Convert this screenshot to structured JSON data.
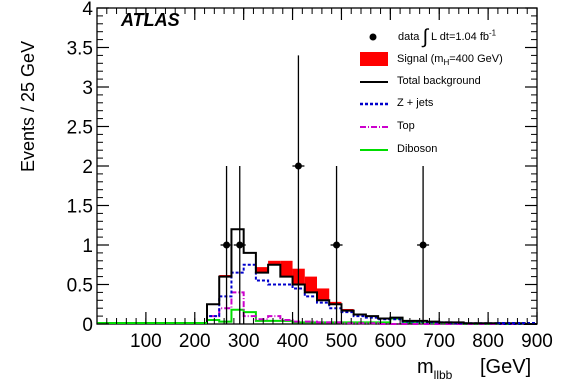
{
  "experiment": "ATLAS",
  "legend": {
    "data": "data ∫ L dt=1.04 fb⁻¹",
    "signal": "Signal (m_H=400 GeV)",
    "total": "Total background",
    "zjets": "Z + jets",
    "top": "Top",
    "diboson": "Diboson"
  },
  "colors": {
    "signal": "#ff0000",
    "total": "#000000",
    "zjets": "#0000cc",
    "top": "#cc00cc",
    "diboson": "#00dd00",
    "data": "#000000"
  },
  "chart_data": {
    "type": "histogram",
    "ylabel": "Events / 25 GeV",
    "xlabel": "m_llbb",
    "xunit": "[GeV]",
    "xlim": [
      0,
      900
    ],
    "ylim": [
      0,
      4
    ],
    "bin_width_gev": 25,
    "x_ticks": [
      100,
      200,
      300,
      400,
      500,
      600,
      700,
      800,
      900
    ],
    "y_ticks": [
      0,
      0.5,
      1,
      1.5,
      2,
      2.5,
      3,
      3.5,
      4
    ],
    "y_tick_labels": [
      "0",
      "0.5",
      "1",
      "1.5",
      "2",
      "2.5",
      "3",
      "3.5",
      "4"
    ],
    "bin_edges": [
      225,
      250,
      275,
      300,
      325,
      350,
      375,
      400,
      425,
      450,
      475,
      500,
      525,
      550,
      575,
      600,
      625,
      650,
      675,
      700,
      725,
      750,
      775,
      800,
      825,
      850,
      875,
      900
    ],
    "series": [
      {
        "name": "Total background",
        "values": [
          0.25,
          0.6,
          1.2,
          0.9,
          0.65,
          0.75,
          0.6,
          0.5,
          0.4,
          0.3,
          0.25,
          0.17,
          0.12,
          0.1,
          0.07,
          0.08,
          0.04,
          0.04,
          0.03,
          0.02,
          0.02,
          0.01,
          0.01,
          0.01,
          0.01,
          0.01,
          0.0
        ]
      },
      {
        "name": "Z + jets",
        "values": [
          0.1,
          0.35,
          0.65,
          0.75,
          0.55,
          0.5,
          0.5,
          0.45,
          0.35,
          0.27,
          0.2,
          0.15,
          0.1,
          0.08,
          0.06,
          0.06,
          0.03,
          0.03,
          0.02,
          0.02,
          0.01,
          0.01,
          0.01,
          0.01,
          0.0,
          0.0,
          0.0
        ]
      },
      {
        "name": "Top",
        "values": [
          0.1,
          0.2,
          0.4,
          0.1,
          0.06,
          0.1,
          0.05,
          0.03,
          0.03,
          0.02,
          0.02,
          0.01,
          0.01,
          0.01,
          0.0,
          0.0,
          0.0,
          0.0,
          0.0,
          0.0,
          0.0,
          0.0,
          0.0,
          0.0,
          0.0,
          0.0,
          0.0
        ]
      },
      {
        "name": "Diboson",
        "values": [
          0.05,
          0.03,
          0.18,
          0.15,
          0.04,
          0.04,
          0.04,
          0.02,
          0.02,
          0.02,
          0.02,
          0.02,
          0.02,
          0.02,
          0.02,
          0.07,
          0.02,
          0.01,
          0.01,
          0.01,
          0.01,
          0.0,
          0.0,
          0.0,
          0.0,
          0.0,
          0.0
        ]
      },
      {
        "name": "Signal (m_H=400 GeV)",
        "values": [
          0.0,
          0.02,
          0.0,
          0.0,
          0.07,
          0.05,
          0.2,
          0.2,
          0.2,
          0.15,
          0.03,
          0.02,
          0.0,
          0.0,
          0.0,
          0.0,
          0.0,
          0.0,
          0.0,
          0.0,
          0.0,
          0.0,
          0.0,
          0.0,
          0.0,
          0.0,
          0.0
        ]
      }
    ],
    "data_points": [
      {
        "x": 265,
        "y": 1,
        "err": [
          1,
          1
        ]
      },
      {
        "x": 292,
        "y": 1,
        "err": [
          1,
          1
        ]
      },
      {
        "x": 412,
        "y": 2,
        "err": [
          2,
          1.4
        ]
      },
      {
        "x": 490,
        "y": 1,
        "err": [
          1,
          1
        ]
      },
      {
        "x": 667,
        "y": 1,
        "err": [
          1,
          1
        ]
      }
    ]
  }
}
